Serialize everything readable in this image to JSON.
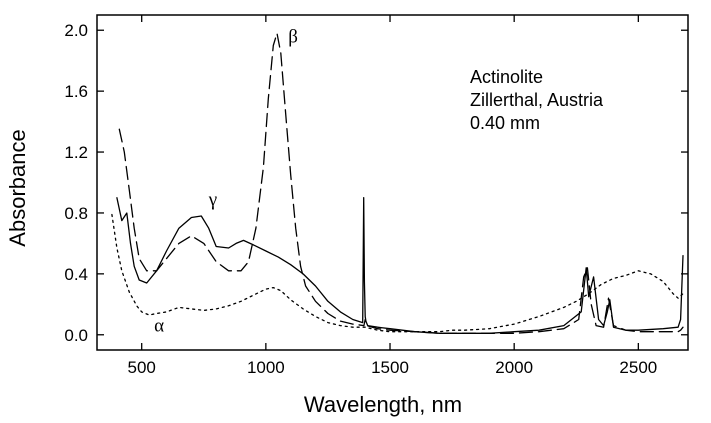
{
  "chart_data": {
    "type": "line",
    "xlabel": "Wavelength, nm",
    "ylabel": "Absorbance",
    "xlim": [
      320,
      2700
    ],
    "ylim": [
      -0.1,
      2.1
    ],
    "xticks": [
      500,
      1000,
      1500,
      2000,
      2500
    ],
    "yticks": [
      0.0,
      0.4,
      0.8,
      1.2,
      1.6,
      2.0
    ],
    "ytick_labels": [
      "0.0",
      "0.4",
      "0.8",
      "1.2",
      "1.6",
      "2.0"
    ],
    "grid": false,
    "annotation_lines": [
      "Actinolite",
      "Zillerthal, Austria",
      "0.40 mm"
    ],
    "series": [
      {
        "name": "α",
        "label_at": [
          550,
          0.02
        ],
        "style": "dotted",
        "x": [
          380,
          400,
          420,
          450,
          480,
          500,
          530,
          560,
          600,
          650,
          700,
          750,
          800,
          850,
          900,
          950,
          1000,
          1030,
          1060,
          1100,
          1150,
          1200,
          1250,
          1300,
          1350,
          1380,
          1400,
          1450,
          1500,
          1550,
          1600,
          1650,
          1700,
          1750,
          1800,
          1900,
          2000,
          2100,
          2200,
          2250,
          2300,
          2350,
          2400,
          2450,
          2500,
          2550,
          2600,
          2640,
          2660,
          2680
        ],
        "values": [
          0.79,
          0.57,
          0.42,
          0.28,
          0.19,
          0.15,
          0.13,
          0.14,
          0.15,
          0.18,
          0.17,
          0.16,
          0.17,
          0.19,
          0.22,
          0.26,
          0.3,
          0.31,
          0.29,
          0.23,
          0.17,
          0.12,
          0.08,
          0.06,
          0.05,
          0.05,
          0.05,
          0.03,
          0.02,
          0.02,
          0.02,
          0.02,
          0.02,
          0.03,
          0.03,
          0.04,
          0.07,
          0.12,
          0.18,
          0.22,
          0.27,
          0.33,
          0.37,
          0.39,
          0.42,
          0.4,
          0.35,
          0.27,
          0.24,
          0.27
        ]
      },
      {
        "name": "β",
        "label_at": [
          1090,
          1.92
        ],
        "style": "dashed",
        "x": [
          410,
          430,
          450,
          470,
          490,
          520,
          560,
          600,
          650,
          700,
          750,
          800,
          850,
          900,
          930,
          960,
          990,
          1010,
          1030,
          1045,
          1060,
          1080,
          1100,
          1120,
          1140,
          1160,
          1200,
          1250,
          1300,
          1350,
          1395,
          1400,
          1405,
          1450,
          1500,
          1600,
          1700,
          1800,
          1900,
          2000,
          2100,
          2200,
          2260,
          2280,
          2295,
          2310,
          2330,
          2360,
          2380,
          2400,
          2450,
          2500,
          2600,
          2660,
          2670,
          2680
        ],
        "values": [
          1.35,
          1.2,
          0.95,
          0.7,
          0.5,
          0.42,
          0.42,
          0.5,
          0.6,
          0.65,
          0.6,
          0.48,
          0.42,
          0.42,
          0.48,
          0.7,
          1.1,
          1.55,
          1.9,
          1.98,
          1.85,
          1.45,
          1.05,
          0.7,
          0.45,
          0.32,
          0.22,
          0.14,
          0.09,
          0.07,
          0.06,
          0.1,
          0.06,
          0.04,
          0.03,
          0.02,
          0.01,
          0.01,
          0.01,
          0.01,
          0.02,
          0.04,
          0.1,
          0.38,
          0.44,
          0.2,
          0.06,
          0.05,
          0.24,
          0.06,
          0.03,
          0.02,
          0.02,
          0.02,
          0.03,
          0.05
        ]
      },
      {
        "name": "γ",
        "label_at": [
          770,
          0.85
        ],
        "style": "solid",
        "x": [
          400,
          420,
          440,
          455,
          470,
          490,
          520,
          560,
          600,
          650,
          700,
          740,
          770,
          800,
          850,
          880,
          910,
          950,
          1000,
          1050,
          1100,
          1150,
          1200,
          1250,
          1300,
          1350,
          1390,
          1394,
          1397,
          1400,
          1403,
          1410,
          1450,
          1500,
          1600,
          1700,
          1800,
          1900,
          2000,
          2100,
          2200,
          2270,
          2290,
          2300,
          2320,
          2340,
          2360,
          2375,
          2385,
          2400,
          2450,
          2500,
          2600,
          2660,
          2670,
          2680
        ],
        "values": [
          0.9,
          0.75,
          0.8,
          0.6,
          0.45,
          0.36,
          0.34,
          0.42,
          0.55,
          0.7,
          0.77,
          0.78,
          0.7,
          0.58,
          0.57,
          0.6,
          0.62,
          0.59,
          0.55,
          0.51,
          0.46,
          0.4,
          0.32,
          0.22,
          0.15,
          0.1,
          0.08,
          0.9,
          0.35,
          0.12,
          0.09,
          0.06,
          0.05,
          0.04,
          0.02,
          0.01,
          0.01,
          0.01,
          0.02,
          0.03,
          0.06,
          0.15,
          0.44,
          0.25,
          0.38,
          0.1,
          0.06,
          0.15,
          0.23,
          0.05,
          0.03,
          0.03,
          0.04,
          0.05,
          0.1,
          0.52
        ]
      }
    ]
  }
}
